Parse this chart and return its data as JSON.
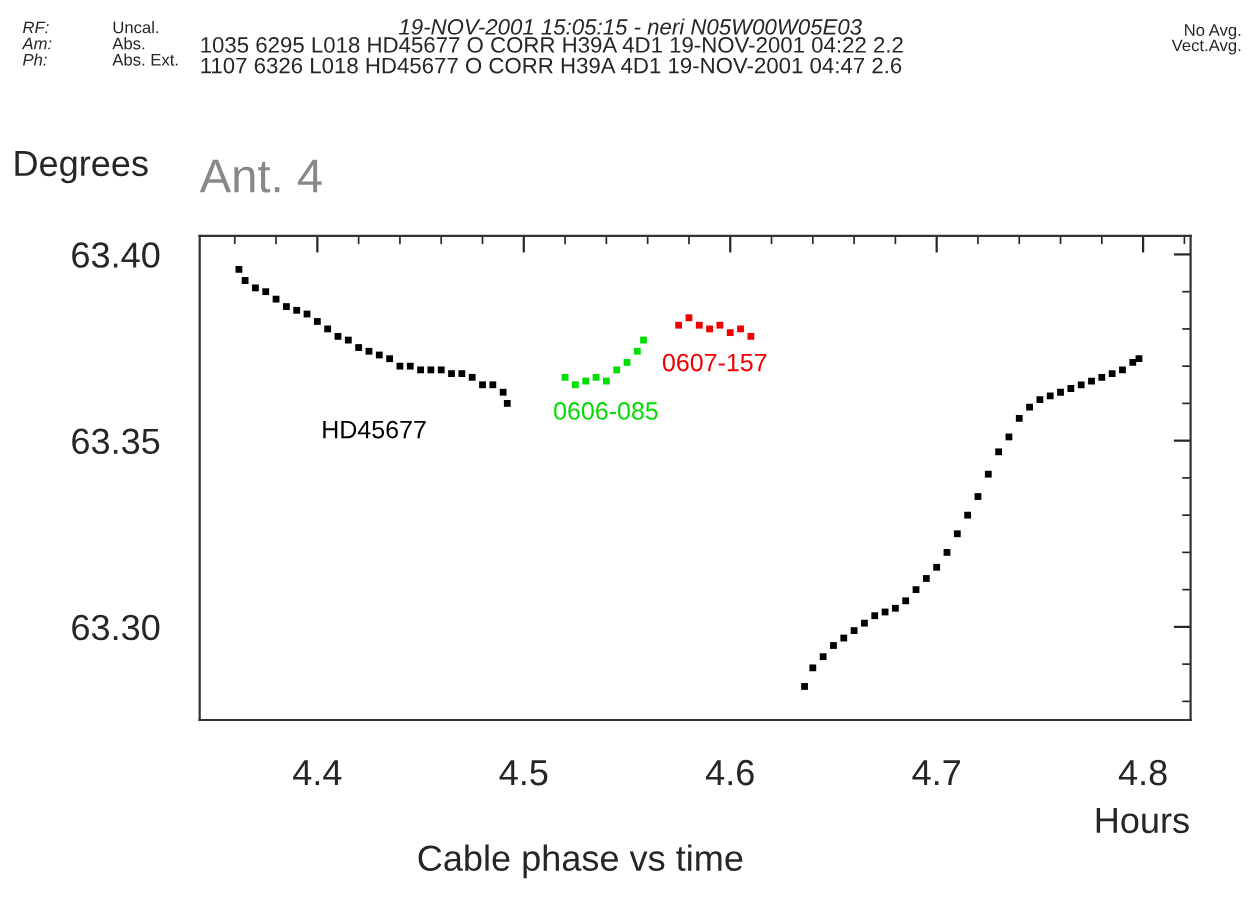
{
  "chart_data": {
    "type": "scatter",
    "title": "19-NOV-2001 15:05:15 - neri N05W00W05E03",
    "subtitle": "Ant. 4",
    "ylabel": "Degrees",
    "xlabel": "Hours",
    "annotations": [
      "RF:",
      "Uncal.",
      "Am:",
      "Abs.",
      "Ph:",
      "Abs. Ext.",
      "1035 6295 L018 HD45677 O CORR H39A 4D1 19-NOV-2001 04:22 2.2",
      "1107 6326 L018 HD45677 O CORR H39A 4D1 19-NOV-2001 04:47 2.6",
      "No Avg.",
      "Vect.Avg.",
      "Cable phase vs time"
    ],
    "xlim": [
      4.343,
      4.823
    ],
    "xticks": [
      4.4,
      4.5,
      4.6,
      4.7,
      4.8
    ],
    "ylim": [
      63.275,
      63.405
    ],
    "yticks": [
      {
        "value": 63.4,
        "label": "63.40"
      },
      {
        "value": 63.35,
        "label": "63.35"
      },
      {
        "value": 63.3,
        "label": "63.30"
      }
    ],
    "grid": false,
    "legend": false,
    "marker": "square",
    "series": [
      {
        "name": "HD45677",
        "color": "#000000",
        "x": [
          4.362,
          4.365,
          4.37,
          4.375,
          4.38,
          4.385,
          4.39,
          4.395,
          4.4,
          4.405,
          4.41,
          4.415,
          4.42,
          4.425,
          4.43,
          4.435,
          4.44,
          4.445,
          4.45,
          4.455,
          4.46,
          4.465,
          4.47,
          4.475,
          4.48,
          4.485,
          4.49,
          4.492,
          4.636,
          4.64,
          4.645,
          4.65,
          4.655,
          4.66,
          4.665,
          4.67,
          4.675,
          4.68,
          4.685,
          4.69,
          4.695,
          4.7,
          4.705,
          4.71,
          4.715,
          4.72,
          4.725,
          4.73,
          4.735,
          4.74,
          4.745,
          4.75,
          4.755,
          4.76,
          4.765,
          4.77,
          4.775,
          4.78,
          4.785,
          4.79,
          4.795,
          4.798
        ],
        "values": [
          63.396,
          63.393,
          63.391,
          63.39,
          63.388,
          63.386,
          63.385,
          63.384,
          63.382,
          63.38,
          63.378,
          63.377,
          63.375,
          63.374,
          63.373,
          63.372,
          63.37,
          63.37,
          63.369,
          63.369,
          63.369,
          63.368,
          63.368,
          63.367,
          63.365,
          63.365,
          63.363,
          63.36,
          63.284,
          63.289,
          63.292,
          63.295,
          63.297,
          63.299,
          63.301,
          63.303,
          63.304,
          63.305,
          63.307,
          63.31,
          63.313,
          63.316,
          63.32,
          63.325,
          63.33,
          63.335,
          63.341,
          63.347,
          63.351,
          63.356,
          63.359,
          63.361,
          63.362,
          63.363,
          63.364,
          63.365,
          63.366,
          63.367,
          63.368,
          63.369,
          63.371,
          63.372
        ]
      },
      {
        "name": "0606-085",
        "color": "#00dd00",
        "x": [
          4.52,
          4.525,
          4.53,
          4.535,
          4.54,
          4.545,
          4.55,
          4.555,
          4.558
        ],
        "values": [
          63.367,
          63.365,
          63.366,
          63.367,
          63.366,
          63.369,
          63.371,
          63.374,
          63.377
        ]
      },
      {
        "name": "0607-157",
        "color": "#ee0000",
        "x": [
          4.575,
          4.58,
          4.585,
          4.59,
          4.595,
          4.6,
          4.605,
          4.61
        ],
        "values": [
          63.381,
          63.383,
          63.381,
          63.38,
          63.381,
          63.379,
          63.38,
          63.378
        ]
      }
    ]
  }
}
